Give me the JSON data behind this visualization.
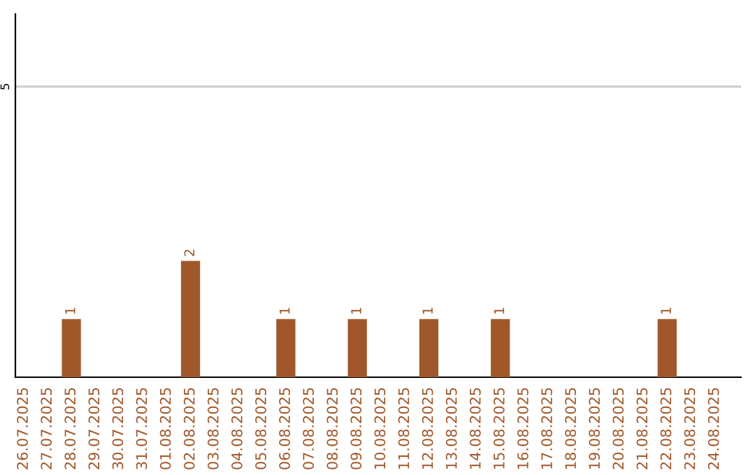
{
  "chart_data": {
    "type": "bar",
    "categories": [
      "26.07.2025",
      "27.07.2025",
      "28.07.2025",
      "29.07.2025",
      "30.07.2025",
      "31.07.2025",
      "01.08.2025",
      "02.08.2025",
      "03.08.2025",
      "04.08.2025",
      "05.08.2025",
      "06.08.2025",
      "07.08.2025",
      "08.08.2025",
      "09.08.2025",
      "10.08.2025",
      "11.08.2025",
      "12.08.2025",
      "13.08.2025",
      "14.08.2025",
      "15.08.2025",
      "16.08.2025",
      "17.08.2025",
      "18.08.2025",
      "19.08.2025",
      "20.08.2025",
      "21.08.2025",
      "22.08.2025",
      "23.08.2025",
      "24.08.2025"
    ],
    "values": [
      0,
      0,
      1,
      0,
      0,
      0,
      0,
      2,
      0,
      0,
      0,
      1,
      0,
      0,
      1,
      0,
      0,
      1,
      0,
      0,
      1,
      0,
      0,
      0,
      0,
      0,
      0,
      1,
      0,
      0
    ],
    "value_labels": [
      null,
      null,
      "1",
      null,
      null,
      null,
      null,
      "2",
      null,
      null,
      null,
      "1",
      null,
      null,
      "1",
      null,
      null,
      "1",
      null,
      null,
      "1",
      null,
      null,
      null,
      null,
      null,
      null,
      "1",
      null,
      null
    ],
    "color": "#a0582a",
    "ylim": [
      0,
      6.25
    ],
    "yticks": [
      5
    ],
    "grid": "y"
  }
}
